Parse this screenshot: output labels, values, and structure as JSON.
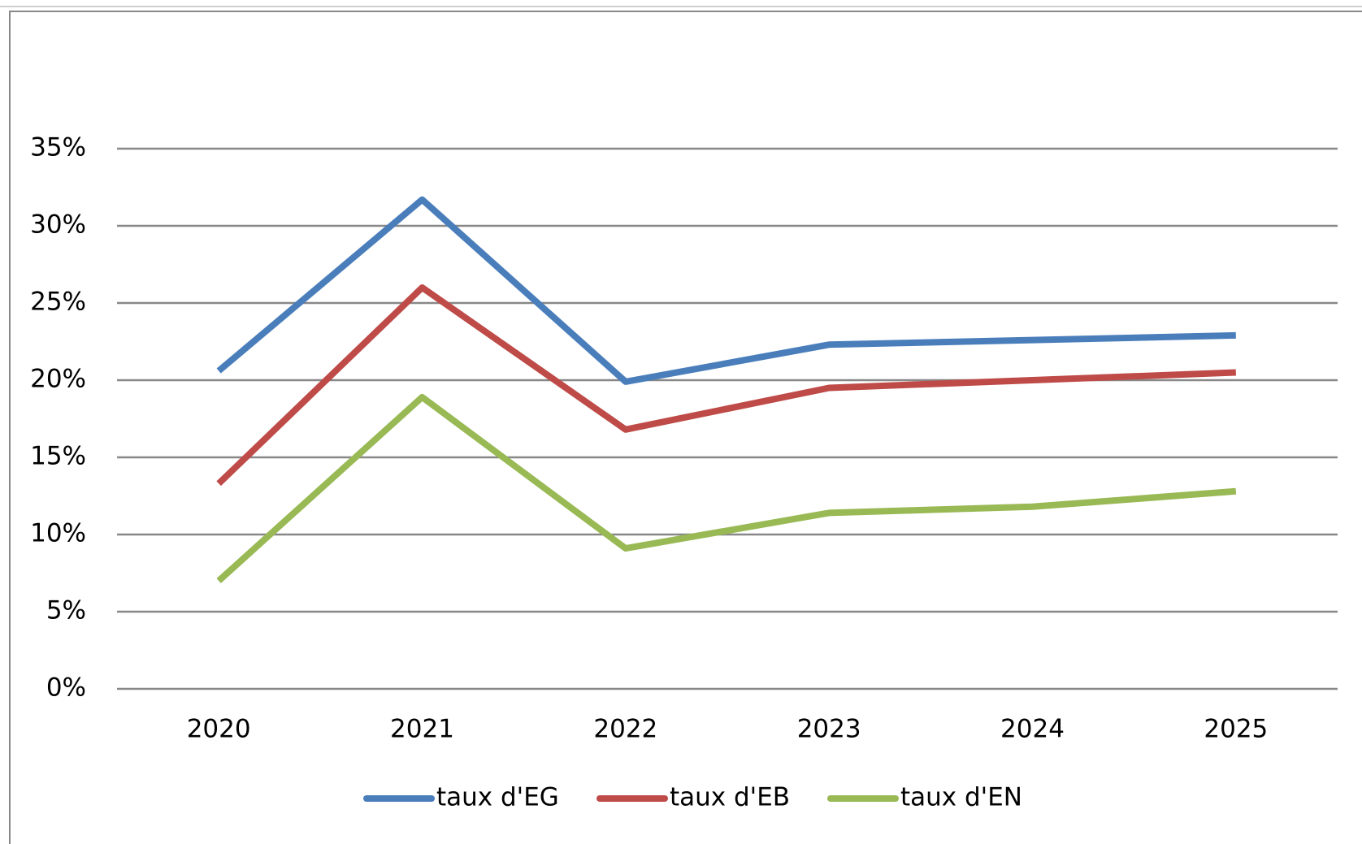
{
  "chart_data": {
    "type": "line",
    "categories": [
      "2020",
      "2021",
      "2022",
      "2023",
      "2024",
      "2025"
    ],
    "series": [
      {
        "name": "taux d'EG",
        "color": "#4a7ebb",
        "values": [
          20.6,
          31.7,
          19.9,
          22.3,
          22.6,
          22.9
        ]
      },
      {
        "name": "taux d'EB",
        "color": "#be4b48",
        "values": [
          13.3,
          26.0,
          16.8,
          19.5,
          20.0,
          20.5
        ]
      },
      {
        "name": "taux d'EN",
        "color": "#98b954",
        "values": [
          7.0,
          18.9,
          9.1,
          11.4,
          11.8,
          12.8
        ]
      }
    ],
    "ylim": [
      0,
      35
    ],
    "yticks": [
      {
        "value": 0,
        "label": "0%"
      },
      {
        "value": 5,
        "label": "5%"
      },
      {
        "value": 10,
        "label": "10%"
      },
      {
        "value": 15,
        "label": "15%"
      },
      {
        "value": 20,
        "label": "20%"
      },
      {
        "value": 25,
        "label": "25%"
      },
      {
        "value": 30,
        "label": "30%"
      },
      {
        "value": 35,
        "label": "35%"
      }
    ],
    "grid": true,
    "legend": "bottom"
  }
}
